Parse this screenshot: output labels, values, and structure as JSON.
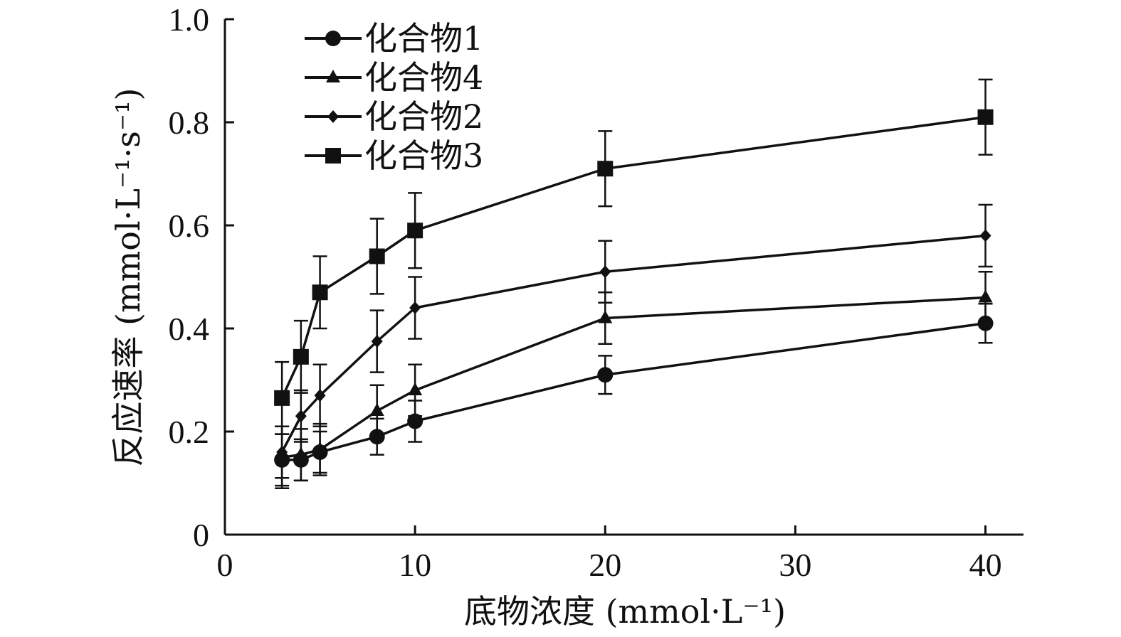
{
  "chart_data": {
    "type": "line",
    "title": "",
    "xlabel": "底物浓度 (mmol·L⁻¹)",
    "ylabel": "反应速率 (mmol·L⁻¹·s⁻¹)",
    "xlim": [
      0,
      42
    ],
    "ylim": [
      0,
      1.0
    ],
    "xticks": [
      0,
      10,
      20,
      30,
      40
    ],
    "xtick_labels": [
      "0",
      "10",
      "20",
      "30",
      "40"
    ],
    "yticks": [
      0,
      0.2,
      0.4,
      0.6,
      0.8,
      1.0
    ],
    "ytick_labels": [
      "0",
      "0.2",
      "0.4",
      "0.6",
      "0.8",
      "1.0"
    ],
    "grid": false,
    "legend_position": "top-left",
    "x": [
      3,
      4,
      5,
      8,
      10,
      20,
      40
    ],
    "series": [
      {
        "name": "化合物1",
        "marker": "circle",
        "values": [
          0.145,
          0.145,
          0.16,
          0.19,
          0.22,
          0.31,
          0.41
        ],
        "errors": [
          0.05,
          0.04,
          0.04,
          0.035,
          0.04,
          0.037,
          0.038
        ]
      },
      {
        "name": "化合物4",
        "marker": "triangle",
        "values": [
          0.15,
          0.155,
          0.165,
          0.24,
          0.28,
          0.42,
          0.46
        ],
        "errors": [
          0.06,
          0.05,
          0.05,
          0.05,
          0.05,
          0.05,
          0.05
        ]
      },
      {
        "name": "化合物2",
        "marker": "diamond",
        "values": [
          0.16,
          0.23,
          0.27,
          0.375,
          0.44,
          0.51,
          0.58
        ],
        "errors": [
          0.05,
          0.05,
          0.06,
          0.06,
          0.06,
          0.06,
          0.06
        ]
      },
      {
        "name": "化合物3",
        "marker": "square",
        "values": [
          0.265,
          0.345,
          0.47,
          0.54,
          0.59,
          0.71,
          0.81
        ],
        "errors": [
          0.07,
          0.07,
          0.07,
          0.073,
          0.073,
          0.073,
          0.073
        ]
      }
    ],
    "colors": {
      "line": "#111111",
      "axis": "#111111"
    }
  }
}
